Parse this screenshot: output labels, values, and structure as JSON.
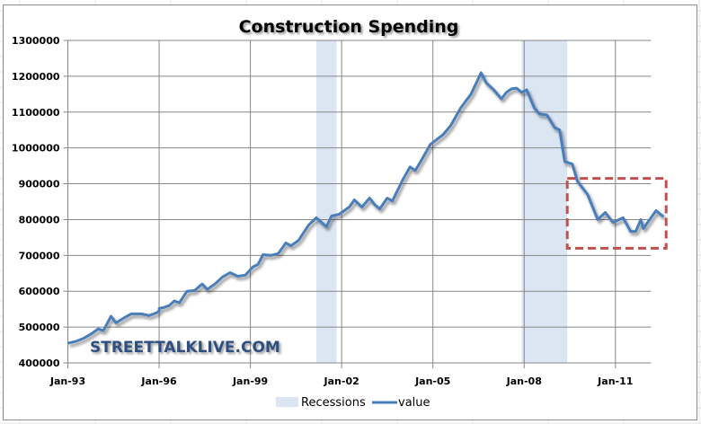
{
  "chart_data": {
    "type": "line",
    "title": "Construction Spending",
    "xlabel": "",
    "ylabel": "",
    "ylim": [
      400000,
      1300000
    ],
    "yticks": [
      "400000",
      "500000",
      "600000",
      "700000",
      "800000",
      "900000",
      "1000000",
      "1100000",
      "1200000",
      "1300000"
    ],
    "xticks": [
      "Jan-93",
      "Jan-96",
      "Jan-99",
      "Jan-02",
      "Jan-05",
      "Jan-08",
      "Jan-11"
    ],
    "xlim": [
      "1993-01",
      "2012-03"
    ],
    "grid": true,
    "legend_position": "bottom",
    "watermark": "STREETTALKLIVE.COM",
    "colors": {
      "line": "#4a7ebb",
      "recession": "#dce6f2",
      "highlight_box": "#c0504d",
      "grid": "#878787"
    },
    "recessions": {
      "name": "Recessions",
      "periods": [
        [
          "2001-03",
          "2001-11"
        ],
        [
          "2007-12",
          "2009-06"
        ]
      ]
    },
    "highlight_box": {
      "from": "2009-06",
      "to": "2012-09",
      "ymin": 720000,
      "ymax": 915000
    },
    "series": [
      {
        "name": "value",
        "points": [
          [
            "1993-01",
            455000
          ],
          [
            "1993-04",
            460000
          ],
          [
            "1993-07",
            468000
          ],
          [
            "1993-10",
            480000
          ],
          [
            "1994-01",
            495000
          ],
          [
            "1994-03",
            490000
          ],
          [
            "1994-06",
            530000
          ],
          [
            "1994-08",
            512000
          ],
          [
            "1994-11",
            525000
          ],
          [
            "1995-02",
            537000
          ],
          [
            "1995-06",
            537000
          ],
          [
            "1995-09",
            532000
          ],
          [
            "1996-01",
            545000
          ],
          [
            "1995-12",
            540000
          ],
          [
            "1996-01",
            552000
          ],
          [
            "1996-03",
            555000
          ],
          [
            "1996-05",
            560000
          ],
          [
            "1996-07",
            573000
          ],
          [
            "1996-09",
            568000
          ],
          [
            "1996-12",
            600000
          ],
          [
            "1997-03",
            602000
          ],
          [
            "1997-06",
            620000
          ],
          [
            "1997-08",
            605000
          ],
          [
            "1997-11",
            620000
          ],
          [
            "1998-02",
            640000
          ],
          [
            "1998-05",
            652000
          ],
          [
            "1998-08",
            642000
          ],
          [
            "1998-11",
            645000
          ],
          [
            "1999-02",
            668000
          ],
          [
            "1999-04",
            675000
          ],
          [
            "1999-06",
            702000
          ],
          [
            "1999-09",
            700000
          ],
          [
            "1999-12",
            705000
          ],
          [
            "2000-03",
            735000
          ],
          [
            "2000-05",
            727000
          ],
          [
            "2000-08",
            742000
          ],
          [
            "2000-12",
            785000
          ],
          [
            "2001-03",
            805000
          ],
          [
            "2001-07",
            780000
          ],
          [
            "2001-09",
            810000
          ],
          [
            "2001-12",
            815000
          ],
          [
            "2002-04",
            835000
          ],
          [
            "2002-06",
            855000
          ],
          [
            "2002-09",
            835000
          ],
          [
            "2002-12",
            860000
          ],
          [
            "2003-02",
            842000
          ],
          [
            "2003-04",
            830000
          ],
          [
            "2003-07",
            860000
          ],
          [
            "2003-09",
            852000
          ],
          [
            "2004-01",
            910000
          ],
          [
            "2004-04",
            947000
          ],
          [
            "2004-06",
            937000
          ],
          [
            "2004-08",
            960000
          ],
          [
            "2004-12",
            1010000
          ],
          [
            "2005-05",
            1037000
          ],
          [
            "2005-08",
            1062000
          ],
          [
            "2005-12",
            1112000
          ],
          [
            "2006-04",
            1150000
          ],
          [
            "2006-06",
            1180000
          ],
          [
            "2006-08",
            1210000
          ],
          [
            "2006-10",
            1182000
          ],
          [
            "2007-01",
            1162000
          ],
          [
            "2007-04",
            1137000
          ],
          [
            "2007-06",
            1155000
          ],
          [
            "2007-08",
            1165000
          ],
          [
            "2007-10",
            1167000
          ],
          [
            "2007-12",
            1155000
          ],
          [
            "2008-02",
            1162000
          ],
          [
            "2008-05",
            1112000
          ],
          [
            "2008-07",
            1095000
          ],
          [
            "2008-10",
            1092000
          ],
          [
            "2009-01",
            1057000
          ],
          [
            "2009-03",
            1050000
          ],
          [
            "2009-05",
            962000
          ],
          [
            "2009-08",
            955000
          ],
          [
            "2009-10",
            907000
          ],
          [
            "2010-02",
            870000
          ],
          [
            "2010-06",
            800000
          ],
          [
            "2010-09",
            820000
          ],
          [
            "2010-12",
            792000
          ],
          [
            "2011-04",
            805000
          ],
          [
            "2011-07",
            767000
          ],
          [
            "2011-09",
            767000
          ],
          [
            "2011-11",
            800000
          ],
          [
            "2011-12",
            775000
          ],
          [
            "2012-02",
            795000
          ],
          [
            "2012-05",
            825000
          ],
          [
            "2012-08",
            808000
          ]
        ]
      }
    ]
  }
}
